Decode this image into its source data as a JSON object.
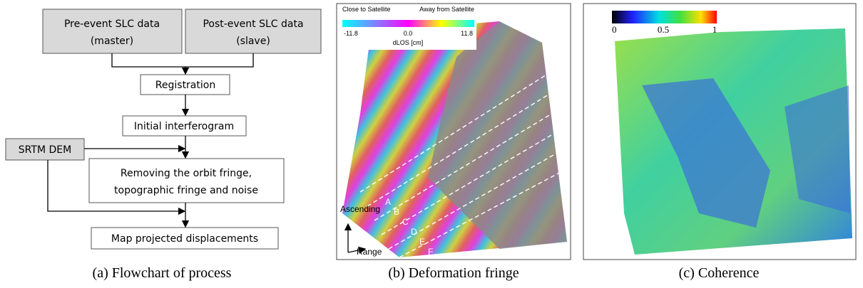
{
  "flowchart": {
    "nodes": [
      {
        "label": "Pre-event SLC data",
        "sublabel": "(master)"
      },
      {
        "label": "Post-event SLC data",
        "sublabel": "(slave)"
      },
      {
        "label": "Registration"
      },
      {
        "label": "Initial interferogram"
      },
      {
        "label": "SRTM DEM"
      },
      {
        "label": "Removing the orbit fringe,",
        "sublabel": "topographic fringe and noise"
      },
      {
        "label": "Map projected displacements"
      }
    ],
    "caption": "(a) Flowchart of process"
  },
  "fringe": {
    "colorbar": {
      "left_title": "Close to Satellite",
      "right_title": "Away from Satellite",
      "min": "-11.8",
      "mid": "0.0",
      "max": "11.8",
      "label": "dLOS [cm]"
    },
    "profiles": [
      "A",
      "B",
      "C",
      "D",
      "E",
      "F"
    ],
    "arrows": {
      "up": "Ascending",
      "right": "Range"
    },
    "caption": "(b) Deformation fringe"
  },
  "coherence": {
    "colorbar": {
      "min": "0",
      "mid": "0.5",
      "max": "1"
    },
    "caption": "(c) Coherence"
  }
}
